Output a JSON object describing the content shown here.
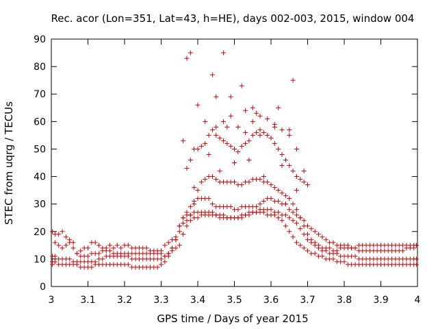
{
  "chart_data": {
    "type": "scatter",
    "title": "Rec. acor (Lon=351, Lat=43, h=HE), days 002-003, 2015, window 004",
    "xlabel": "GPS time / Days of year 2015",
    "ylabel": "STEC from uqrg / TECUs",
    "xlim": [
      3.0,
      4.0
    ],
    "ylim": [
      0,
      90
    ],
    "xticks": [
      "3",
      "3.1",
      "3.2",
      "3.3",
      "3.4",
      "3.5",
      "3.6",
      "3.7",
      "3.8",
      "3.9",
      "4"
    ],
    "yticks": [
      "0",
      "10",
      "20",
      "30",
      "40",
      "50",
      "60",
      "70",
      "80",
      "90"
    ],
    "grid": false,
    "marker": "+",
    "color": "#cc0000",
    "series": [
      {
        "name": "STEC",
        "x": [
          3.003,
          3.01,
          3.02,
          3.03,
          3.04,
          3.05,
          3.06,
          3.07,
          3.08,
          3.09,
          3.1,
          3.11,
          3.12,
          3.13,
          3.14,
          3.15,
          3.16,
          3.17,
          3.18,
          3.19,
          3.2,
          3.21,
          3.22,
          3.23,
          3.24,
          3.25,
          3.26,
          3.27,
          3.28,
          3.29,
          3.3,
          3.31,
          3.32,
          3.33,
          3.34,
          3.35,
          3.36,
          3.37,
          3.38,
          3.39,
          3.4,
          3.41,
          3.42,
          3.43,
          3.44,
          3.45,
          3.46,
          3.47,
          3.48,
          3.49,
          3.5,
          3.51,
          3.52,
          3.53,
          3.54,
          3.55,
          3.56,
          3.57,
          3.58,
          3.59,
          3.6,
          3.61,
          3.62,
          3.63,
          3.64,
          3.65,
          3.66,
          3.67,
          3.68,
          3.69,
          3.7,
          3.71,
          3.72,
          3.73,
          3.74,
          3.75,
          3.76,
          3.77,
          3.78,
          3.79,
          3.8,
          3.81,
          3.82,
          3.83,
          3.84,
          3.85,
          3.86,
          3.87,
          3.88,
          3.89,
          3.9,
          3.91,
          3.92,
          3.93,
          3.94,
          3.95,
          3.96,
          3.97,
          3.98,
          3.99,
          3.997,
          3.003,
          3.01,
          3.02,
          3.03,
          3.04,
          3.05,
          3.06,
          3.07,
          3.08,
          3.09,
          3.1,
          3.11,
          3.12,
          3.13,
          3.14,
          3.15,
          3.16,
          3.17,
          3.18,
          3.19,
          3.2,
          3.21,
          3.22,
          3.23,
          3.24,
          3.25,
          3.26,
          3.27,
          3.28,
          3.29,
          3.3,
          3.31,
          3.32,
          3.33,
          3.34,
          3.35,
          3.36,
          3.37,
          3.38,
          3.39,
          3.4,
          3.41,
          3.42,
          3.43,
          3.44,
          3.45,
          3.46,
          3.47,
          3.48,
          3.49,
          3.5,
          3.51,
          3.52,
          3.53,
          3.54,
          3.55,
          3.56,
          3.57,
          3.58,
          3.59,
          3.6,
          3.61,
          3.62,
          3.63,
          3.64,
          3.65,
          3.66,
          3.67,
          3.68,
          3.69,
          3.7,
          3.71,
          3.72,
          3.73,
          3.74,
          3.75,
          3.76,
          3.77,
          3.78,
          3.79,
          3.8,
          3.81,
          3.82,
          3.83,
          3.84,
          3.85,
          3.86,
          3.87,
          3.88,
          3.89,
          3.9,
          3.91,
          3.92,
          3.93,
          3.94,
          3.95,
          3.96,
          3.97,
          3.98,
          3.99,
          3.997,
          3.003,
          3.01,
          3.02,
          3.03,
          3.04,
          3.05,
          3.06,
          3.07,
          3.08,
          3.09,
          3.1,
          3.11,
          3.12,
          3.13,
          3.14,
          3.15,
          3.16,
          3.17,
          3.18,
          3.19,
          3.2,
          3.21,
          3.22,
          3.23,
          3.24,
          3.25,
          3.26,
          3.27,
          3.28,
          3.29,
          3.3,
          3.31,
          3.32,
          3.33,
          3.34,
          3.35,
          3.36,
          3.37,
          3.38,
          3.39,
          3.4,
          3.41,
          3.42,
          3.43,
          3.44,
          3.45,
          3.46,
          3.47,
          3.48,
          3.49,
          3.5,
          3.51,
          3.52,
          3.53,
          3.54,
          3.55,
          3.56,
          3.57,
          3.58,
          3.59,
          3.6,
          3.61,
          3.62,
          3.63,
          3.64,
          3.65,
          3.66,
          3.67,
          3.68,
          3.69,
          3.7,
          3.71,
          3.72,
          3.73,
          3.74,
          3.75,
          3.76,
          3.77,
          3.78,
          3.79,
          3.8,
          3.81,
          3.82,
          3.83,
          3.84,
          3.85,
          3.86,
          3.87,
          3.88,
          3.89,
          3.9,
          3.91,
          3.92,
          3.93,
          3.94,
          3.95,
          3.96,
          3.97,
          3.98,
          3.99,
          3.997,
          3.003,
          3.01,
          3.02,
          3.03,
          3.04,
          3.05,
          3.06,
          3.07,
          3.08,
          3.09,
          3.1,
          3.11,
          3.12,
          3.13,
          3.14,
          3.15,
          3.16,
          3.17,
          3.18,
          3.19,
          3.2,
          3.21,
          3.22,
          3.23,
          3.24,
          3.25,
          3.26,
          3.27,
          3.28,
          3.29,
          3.3,
          3.31,
          3.32,
          3.33,
          3.34,
          3.35,
          3.36,
          3.37,
          3.38,
          3.39,
          3.4,
          3.41,
          3.42,
          3.43,
          3.44,
          3.45,
          3.46,
          3.47,
          3.48,
          3.49,
          3.5,
          3.51,
          3.52,
          3.53,
          3.54,
          3.55,
          3.56,
          3.57,
          3.58,
          3.59,
          3.6,
          3.61,
          3.62,
          3.63,
          3.64,
          3.65,
          3.66,
          3.67,
          3.68,
          3.69,
          3.7,
          3.71,
          3.72,
          3.73,
          3.74,
          3.75,
          3.76,
          3.77,
          3.78,
          3.79,
          3.8,
          3.81,
          3.82,
          3.83,
          3.84,
          3.85,
          3.86,
          3.87,
          3.88,
          3.89,
          3.9,
          3.91,
          3.92,
          3.93,
          3.94,
          3.95,
          3.96,
          3.97,
          3.98,
          3.99,
          3.997,
          3.37,
          3.38,
          3.4,
          3.42,
          3.43,
          3.44,
          3.45,
          3.46,
          3.47,
          3.48,
          3.49,
          3.5,
          3.51,
          3.52,
          3.53,
          3.54,
          3.55,
          3.56,
          3.57,
          3.58,
          3.59,
          3.6,
          3.61,
          3.62,
          3.63,
          3.64,
          3.65,
          3.66,
          3.67,
          3.68,
          3.69,
          3.7,
          3.39,
          3.41,
          3.43,
          3.45,
          3.47,
          3.49,
          3.51,
          3.53,
          3.55,
          3.57,
          3.59,
          3.61,
          3.63,
          3.65,
          3.67,
          3.69,
          3.36,
          3.37,
          3.38,
          3.39,
          3.4,
          3.42,
          3.44,
          3.45,
          3.46,
          3.47,
          3.48,
          3.49,
          3.5,
          3.52,
          3.53,
          3.54,
          3.55,
          3.56,
          3.57,
          3.58,
          3.61,
          3.62,
          3.63,
          3.64,
          3.65,
          3.66,
          3.67
        ],
        "y": [
          20,
          19,
          19,
          20,
          18,
          17,
          14,
          12,
          13,
          14,
          14,
          16,
          16,
          15,
          14,
          14,
          15,
          14,
          15,
          14,
          15,
          15,
          14,
          14,
          14,
          14,
          14,
          13,
          13,
          13,
          13,
          15,
          16,
          17,
          17,
          22,
          25,
          27,
          29,
          30,
          32,
          32,
          32,
          32,
          30,
          29,
          29,
          29,
          29,
          29,
          28,
          28,
          29,
          29,
          29,
          29,
          29,
          30,
          31,
          32,
          32,
          31,
          31,
          30,
          30,
          28,
          27,
          26,
          25,
          24,
          22,
          21,
          20,
          19,
          18,
          17,
          16,
          16,
          15,
          15,
          15,
          15,
          14,
          14,
          13,
          13,
          13,
          13,
          13,
          13,
          13,
          13,
          13,
          13,
          13,
          13,
          13,
          14,
          14,
          14,
          15,
          11,
          11,
          10,
          10,
          10,
          10,
          9,
          9,
          9,
          9,
          9,
          9,
          9,
          10,
          10,
          11,
          11,
          11,
          11,
          11,
          11,
          11,
          10,
          10,
          10,
          10,
          10,
          10,
          10,
          10,
          10,
          11,
          12,
          14,
          17,
          20,
          23,
          24,
          24,
          25,
          25,
          26,
          26,
          26,
          26,
          26,
          26,
          26,
          25,
          25,
          25,
          25,
          25,
          26,
          26,
          27,
          27,
          28,
          28,
          28,
          28,
          27,
          27,
          26,
          26,
          25,
          24,
          23,
          21,
          19,
          17,
          16,
          15,
          14,
          13,
          13,
          12,
          12,
          12,
          11,
          11,
          11,
          11,
          11,
          10,
          10,
          10,
          10,
          10,
          10,
          10,
          10,
          10,
          10,
          10,
          10,
          10,
          10,
          10,
          10,
          10,
          9,
          9,
          8,
          8,
          8,
          8,
          8,
          8,
          7,
          7,
          7,
          7,
          8,
          8,
          8,
          8,
          8,
          8,
          8,
          8,
          8,
          8,
          7,
          7,
          7,
          7,
          7,
          7,
          7,
          7,
          8,
          9,
          11,
          14,
          18,
          22,
          25,
          26,
          26,
          27,
          27,
          27,
          27,
          27,
          27,
          26,
          25,
          25,
          25,
          25,
          25,
          25,
          26,
          26,
          27,
          27,
          27,
          27,
          27,
          26,
          26,
          26,
          25,
          24,
          22,
          20,
          18,
          16,
          15,
          14,
          13,
          12,
          12,
          11,
          11,
          10,
          10,
          10,
          9,
          9,
          9,
          8,
          8,
          8,
          8,
          8,
          8,
          8,
          8,
          8,
          8,
          8,
          8,
          8,
          8,
          8,
          8,
          8,
          8,
          8,
          8,
          8,
          16,
          15,
          14,
          15,
          16,
          16,
          12,
          11,
          11,
          11,
          12,
          12,
          12,
          13,
          13,
          13,
          12,
          12,
          12,
          12,
          12,
          12,
          12,
          12,
          12,
          12,
          12,
          12,
          12,
          12,
          11,
          12,
          13,
          14,
          15,
          19,
          22,
          26,
          31,
          35,
          38,
          39,
          40,
          40,
          39,
          38,
          38,
          38,
          38,
          38,
          37,
          37,
          38,
          38,
          39,
          39,
          39,
          38,
          38,
          37,
          36,
          35,
          34,
          33,
          32,
          30,
          28,
          25,
          22,
          19,
          17,
          16,
          15,
          14,
          14,
          14,
          13,
          13,
          14,
          14,
          14,
          14,
          14,
          15,
          15,
          15,
          15,
          15,
          15,
          15,
          15,
          15,
          15,
          15,
          15,
          15,
          15,
          15,
          15,
          15,
          43,
          46,
          50,
          52,
          55,
          57,
          55,
          54,
          53,
          52,
          51,
          50,
          49,
          51,
          52,
          53,
          55,
          56,
          57,
          56,
          55,
          54,
          52,
          50,
          48,
          46,
          44,
          42,
          40,
          39,
          38,
          37,
          50,
          51,
          48,
          58,
          60,
          62,
          58,
          56,
          60,
          62,
          61,
          59,
          57,
          55,
          50,
          42,
          53,
          83,
          85,
          36,
          66,
          60,
          77,
          69,
          42,
          85,
          58,
          69,
          45,
          73,
          64,
          46,
          65,
          63,
          55,
          40,
          58,
          65,
          44,
          30,
          57,
          75,
          35
        ]
      }
    ]
  }
}
